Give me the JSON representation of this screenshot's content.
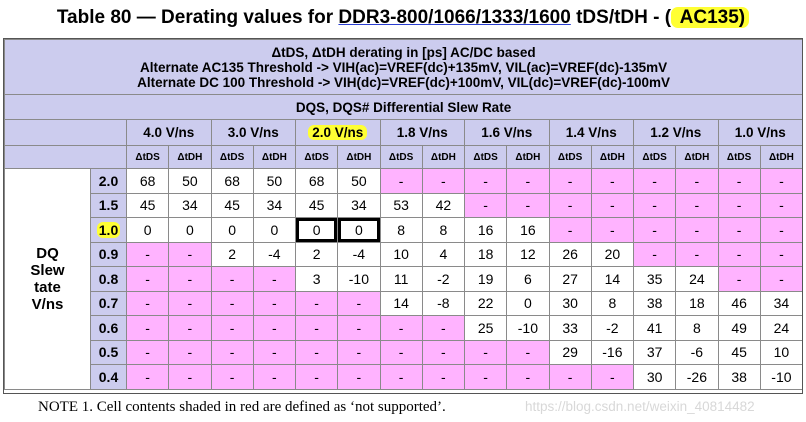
{
  "title": {
    "prefix": "Table 80 — Derating values for ",
    "link": "DDR3-800/1066/1333/1600",
    "middle": " tDS/tDH - (",
    "badge": " AC135)"
  },
  "header": {
    "line1": "ΔtDS, ΔtDH derating in [ps]  AC/DC based",
    "line2": "Alternate AC135 Threshold -> VIH(ac)=VREF(dc)+135mV, VIL(ac)=VREF(dc)-135mV",
    "line3": "Alternate DC 100 Threshold -> VIH(dc)=VREF(dc)+100mV, VIL(dc)=VREF(dc)-100mV",
    "dqs_rate": "DQS, DQS# Differential Slew Rate"
  },
  "columns": [
    "4.0 V/ns",
    "3.0 V/ns",
    "2.0 V/ns",
    "1.8 V/ns",
    "1.6 V/ns",
    "1.4 V/ns",
    "1.2 V/ns",
    "1.0 V/ns"
  ],
  "sub_headers": [
    "ΔtDS",
    "ΔtDH"
  ],
  "dq_label": [
    "DQ",
    "Slew",
    "tate",
    "V/ns"
  ],
  "rows": [
    {
      "label": "2.0",
      "cells": [
        "68",
        "50",
        "68",
        "50",
        "68",
        "50",
        "-",
        "-",
        "-",
        "-",
        "-",
        "-",
        "-",
        "-",
        "-",
        "-"
      ]
    },
    {
      "label": "1.5",
      "cells": [
        "45",
        "34",
        "45",
        "34",
        "45",
        "34",
        "53",
        "42",
        "-",
        "-",
        "-",
        "-",
        "-",
        "-",
        "-",
        "-"
      ]
    },
    {
      "label": "1.0",
      "cells": [
        "0",
        "0",
        "0",
        "0",
        "0",
        "0",
        "8",
        "8",
        "16",
        "16",
        "-",
        "-",
        "-",
        "-",
        "-",
        "-"
      ]
    },
    {
      "label": "0.9",
      "cells": [
        "-",
        "-",
        "2",
        "-4",
        "2",
        "-4",
        "10",
        "4",
        "18",
        "12",
        "26",
        "20",
        "-",
        "-",
        "-",
        "-"
      ]
    },
    {
      "label": "0.8",
      "cells": [
        "-",
        "-",
        "-",
        "-",
        "3",
        "-10",
        "11",
        "-2",
        "19",
        "6",
        "27",
        "14",
        "35",
        "24",
        "-",
        "-"
      ]
    },
    {
      "label": "0.7",
      "cells": [
        "-",
        "-",
        "-",
        "-",
        "-",
        "-",
        "14",
        "-8",
        "22",
        "0",
        "30",
        "8",
        "38",
        "18",
        "46",
        "34"
      ]
    },
    {
      "label": "0.6",
      "cells": [
        "-",
        "-",
        "-",
        "-",
        "-",
        "-",
        "-",
        "-",
        "25",
        "-10",
        "33",
        "-2",
        "41",
        "8",
        "49",
        "24"
      ]
    },
    {
      "label": "0.5",
      "cells": [
        "-",
        "-",
        "-",
        "-",
        "-",
        "-",
        "-",
        "-",
        "-",
        "-",
        "29",
        "-16",
        "37",
        "-6",
        "45",
        "10"
      ]
    },
    {
      "label": "0.4",
      "cells": [
        "-",
        "-",
        "-",
        "-",
        "-",
        "-",
        "-",
        "-",
        "-",
        "-",
        "-",
        "-",
        "30",
        "-26",
        "38",
        "-10"
      ]
    }
  ],
  "highlighted_row_label": "1.0",
  "highlighted_column": "2.0 V/ns",
  "colors": {
    "header_bg": "#ccccee",
    "not_supported_bg": "#ffb3ff",
    "highlight": "#ffff33"
  },
  "note": "NOTE 1. Cell contents shaded in red are defined as ‘not supported’.",
  "watermark": "https://blog.csdn.net/weixin_40814482"
}
